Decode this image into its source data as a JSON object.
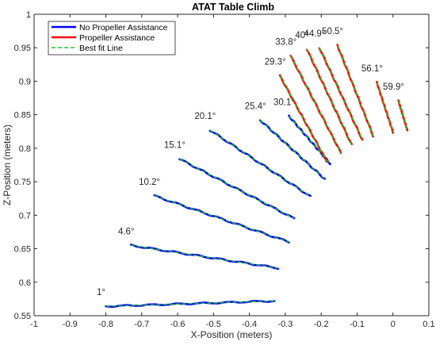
{
  "chart_data": {
    "type": "line",
    "title": "ATAT Table Climb",
    "xlabel": "X-Position (meters)",
    "ylabel": "Z-Position (meters)",
    "xlim": [
      -1,
      0.1
    ],
    "ylim": [
      0.55,
      1
    ],
    "xticks": [
      "-1",
      "-0.9",
      "-0.8",
      "-0.7",
      "-0.6",
      "-0.5",
      "-0.4",
      "-0.3",
      "-0.2",
      "-0.1",
      "0",
      "0.1"
    ],
    "yticks": [
      "0.55",
      "0.6",
      "0.65",
      "0.7",
      "0.75",
      "0.8",
      "0.85",
      "0.9",
      "0.95",
      "1"
    ],
    "grid": false,
    "legend_position": "top-left",
    "legend": [
      {
        "label": "No Propeller Assistance",
        "color": "#0000ff",
        "style": "solid"
      },
      {
        "label": "Propeller Assistance",
        "color": "#ff0000",
        "style": "solid"
      },
      {
        "label": "Best fit Line",
        "color": "#22c322",
        "style": "dashed"
      }
    ],
    "series": [
      {
        "angle_label": "1°",
        "assist": false,
        "x": [
          -0.8,
          -0.33
        ],
        "y": [
          0.564,
          0.572
        ]
      },
      {
        "angle_label": "4.6°",
        "assist": false,
        "x": [
          -0.73,
          -0.32
        ],
        "y": [
          0.655,
          0.621
        ]
      },
      {
        "angle_label": "10.2°",
        "assist": false,
        "x": [
          -0.665,
          -0.29
        ],
        "y": [
          0.729,
          0.66
        ]
      },
      {
        "angle_label": "15.1°",
        "assist": false,
        "x": [
          -0.595,
          -0.275
        ],
        "y": [
          0.784,
          0.695
        ]
      },
      {
        "angle_label": "20.1°",
        "assist": false,
        "x": [
          -0.51,
          -0.23
        ],
        "y": [
          0.827,
          0.728
        ]
      },
      {
        "angle_label": "25.4°",
        "assist": false,
        "x": [
          -0.37,
          -0.19
        ],
        "y": [
          0.842,
          0.754
        ]
      },
      {
        "angle_label": "30.1°",
        "assist": false,
        "x": [
          -0.29,
          -0.175
        ],
        "y": [
          0.848,
          0.777
        ]
      },
      {
        "angle_label": "29.3°",
        "assist": true,
        "x": [
          -0.315,
          -0.185
        ],
        "y": [
          0.908,
          0.781
        ]
      },
      {
        "angle_label": "33.8°",
        "assist": true,
        "x": [
          -0.285,
          -0.145
        ],
        "y": [
          0.938,
          0.793
        ]
      },
      {
        "angle_label": "40°",
        "assist": true,
        "x": [
          -0.24,
          -0.115
        ],
        "y": [
          0.948,
          0.805
        ]
      },
      {
        "angle_label": "44.9°",
        "assist": true,
        "x": [
          -0.205,
          -0.085
        ],
        "y": [
          0.95,
          0.812
        ]
      },
      {
        "angle_label": "50.5°",
        "assist": true,
        "x": [
          -0.155,
          -0.055
        ],
        "y": [
          0.954,
          0.818
        ]
      },
      {
        "angle_label": "56.1°",
        "assist": true,
        "x": [
          -0.045,
          0.0
        ],
        "y": [
          0.898,
          0.824
        ]
      },
      {
        "angle_label": "59.9°",
        "assist": true,
        "x": [
          0.015,
          0.04
        ],
        "y": [
          0.871,
          0.827
        ]
      }
    ]
  }
}
